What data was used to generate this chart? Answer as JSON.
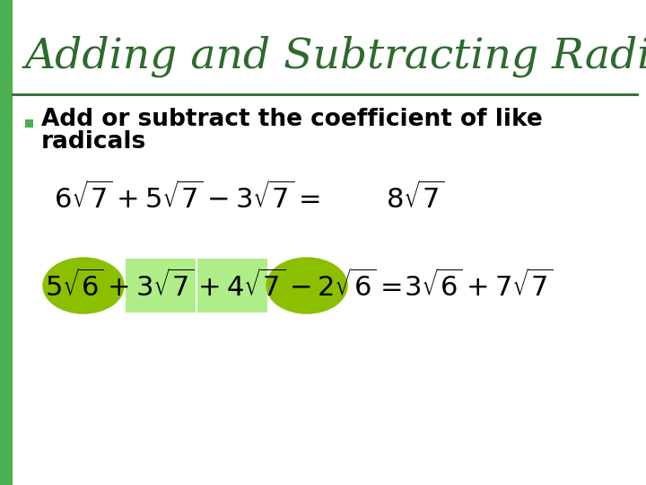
{
  "title": "Adding and Subtracting Radicals",
  "title_color": "#2D6A2D",
  "title_fontsize": 34,
  "background_color": "#FFFFFF",
  "left_bar_color": "#4CAF50",
  "left_bar_width": 14,
  "bullet_color": "#4CAF50",
  "bullet_text_line1": "Add or subtract the coefficient of like",
  "bullet_text_line2": "radicals",
  "bullet_fontsize": 19,
  "bullet_text_color": "#000000",
  "eq_fontsize": 22,
  "eq1_color": "#000000",
  "eq2_color": "#000000",
  "highlight_oval_color": "#8BBF00",
  "highlight_rect_color": "#AEED88",
  "line_color": "#2D6A2D",
  "line_width": 2.0,
  "fig_width": 7.2,
  "fig_height": 5.4,
  "dpi": 100
}
